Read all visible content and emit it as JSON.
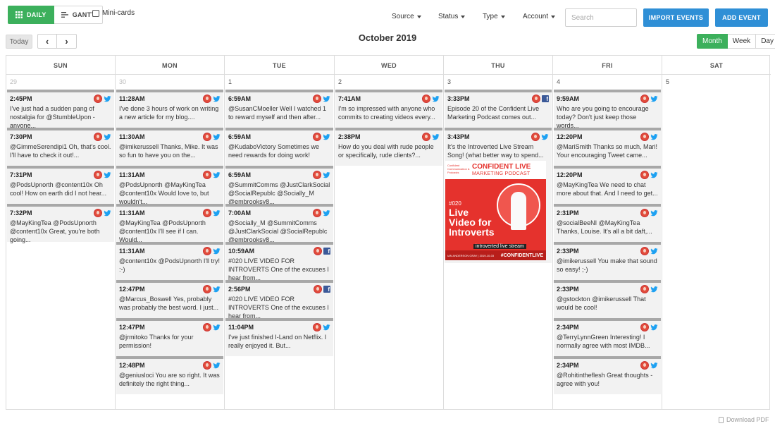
{
  "toolbar": {
    "daily_label": "DAILY",
    "gantt_label": "GANTT",
    "mini_cards_label": "Mini-cards",
    "filters": [
      "Source",
      "Status",
      "Type",
      "Account"
    ],
    "search_placeholder": "Search",
    "import_label": "IMPORT EVENTS",
    "add_label": "ADD EVENT"
  },
  "nav": {
    "today_label": "Today",
    "prev_glyph": "‹",
    "next_glyph": "›",
    "month_title": "October 2019",
    "ranges": [
      "Month",
      "Week",
      "Day"
    ],
    "active_range": "Month"
  },
  "colors": {
    "green": "#3cb05c",
    "blue": "#2f8fd6",
    "twitter": "#1da1f2",
    "facebook": "#3b5998",
    "event_bg": "#f2f2f2",
    "event_border": "#a8a8a8"
  },
  "calendar": {
    "weekdays": [
      "SUN",
      "MON",
      "TUE",
      "WED",
      "THU",
      "FRI",
      "SAT"
    ],
    "days": [
      {
        "day": "29",
        "other_month": true,
        "events": [
          {
            "time": "2:45PM",
            "network": "twitter",
            "text": "I've just had a sudden pang of nostalgia for @StumbleUpon - anyone..."
          },
          {
            "time": "7:30PM",
            "network": "twitter",
            "text": "@GimmeSerendipi1 Oh, that's cool. I'll have to check it out!..."
          },
          {
            "time": "7:31PM",
            "network": "twitter",
            "text": "@PodsUpnorth @content10x Oh cool! How on earth did I not hear..."
          },
          {
            "time": "7:32PM",
            "network": "twitter",
            "text": "@MayKingTea @PodsUpnorth @content10x Great, you're both going..."
          }
        ]
      },
      {
        "day": "30",
        "other_month": true,
        "events": [
          {
            "time": "11:28AM",
            "network": "twitter",
            "text": "I've done 3 hours of work on writing a new article for my blog...."
          },
          {
            "time": "11:30AM",
            "network": "twitter",
            "text": "@imikerussell Thanks, Mike. It was so fun to have you on the..."
          },
          {
            "time": "11:31AM",
            "network": "twitter",
            "text": "@PodsUpnorth @MayKingTea @content10x Would love to, but wouldn't..."
          },
          {
            "time": "11:31AM",
            "network": "twitter",
            "text": "@MayKingTea @PodsUpnorth @content10x I'll see if I can. Would..."
          },
          {
            "time": "11:31AM",
            "network": "twitter",
            "text": "@content10x @PodsUpnorth I'll try! :-)"
          },
          {
            "time": "12:47PM",
            "network": "twitter",
            "text": "@Marcus_Boswell Yes, probably was probably the best word. I just..."
          },
          {
            "time": "12:47PM",
            "network": "twitter",
            "text": "@jrmitoko Thanks for your permission!"
          },
          {
            "time": "12:48PM",
            "network": "twitter",
            "text": "@geniusloci You are so right. It was definitely the right thing..."
          }
        ]
      },
      {
        "day": "1",
        "other_month": false,
        "events": [
          {
            "time": "6:59AM",
            "network": "twitter",
            "text": "@SusanCMoeller Well I watched 1 to reward myself and then after..."
          },
          {
            "time": "6:59AM",
            "network": "twitter",
            "text": "@KudaboVictory Sometimes we need rewards for doing work!"
          },
          {
            "time": "6:59AM",
            "network": "twitter",
            "text": "@SummitComms @JustClarkSocial @SocialRepublc @Socially_M @embrooksy8..."
          },
          {
            "time": "7:00AM",
            "network": "twitter",
            "text": "@Socially_M @SummitComms @JustClarkSocial @SocialRepublc @embrooksy8..."
          },
          {
            "time": "10:59AM",
            "network": "facebook",
            "text": "#020 LIVE VIDEO FOR INTROVERTS One of the excuses I hear from..."
          },
          {
            "time": "2:56PM",
            "network": "facebook",
            "text": "#020 LIVE VIDEO FOR INTROVERTS One of the excuses I hear from..."
          },
          {
            "time": "11:04PM",
            "network": "twitter",
            "text": "I've just finished I-Land on Netflix. I really enjoyed it. But..."
          }
        ]
      },
      {
        "day": "2",
        "other_month": false,
        "events": [
          {
            "time": "7:41AM",
            "network": "twitter",
            "text": "I'm so impressed with anyone who commits to creating videos every..."
          },
          {
            "time": "2:38PM",
            "network": "twitter",
            "text": "How do you deal with rude people or specifically, rude clients?..."
          }
        ]
      },
      {
        "day": "3",
        "other_month": false,
        "events": [
          {
            "time": "3:33PM",
            "network": "facebook",
            "text": "Episode 20 of the Confident Live Marketing Podcast comes out..."
          },
          {
            "time": "3:43PM",
            "network": "twitter",
            "text": "It's the Introverted Live Stream Song! (what better way to spend...",
            "image": {
              "brand_line1": "CONFIDENT LIVE",
              "brand_line2": "MARKETING PODCAST",
              "logo_text": "Confident Communication & Podcasts",
              "episode": "#020",
              "title_line1": "Live",
              "title_line2": "Video for",
              "title_line3": "Introverts",
              "subtitle": "introverted live stream",
              "hashtag": "#CONFIDENTLIVE",
              "footer_small": "IAN ANDERSON GRAY | 2019-10-03"
            }
          }
        ]
      },
      {
        "day": "4",
        "other_month": false,
        "events": [
          {
            "time": "9:59AM",
            "network": "twitter",
            "text": "Who are you going to encourage today? Don't just keep those words..."
          },
          {
            "time": "12:20PM",
            "network": "twitter",
            "text": "@MariSmith Thanks so much, Mari! Your encouraging Tweet came..."
          },
          {
            "time": "12:20PM",
            "network": "twitter",
            "text": "@MayKingTea We need to chat more about that. And I need to get..."
          },
          {
            "time": "2:31PM",
            "network": "twitter",
            "text": "@socialBeeNI @MayKingTea Thanks, Louise. It's all a bit daft,..."
          },
          {
            "time": "2:33PM",
            "network": "twitter",
            "text": "@imikerussell You make that sound so easy! ;-)"
          },
          {
            "time": "2:33PM",
            "network": "twitter",
            "text": "@gstockton @imikerussell That would be cool!"
          },
          {
            "time": "2:34PM",
            "network": "twitter",
            "text": "@TerryLynnGreen Interesting! I normally agree with most IMDB..."
          },
          {
            "time": "2:34PM",
            "network": "twitter",
            "text": "@Rohitintheflesh Great thoughts - agree with you!"
          }
        ]
      },
      {
        "day": "5",
        "other_month": false,
        "events": []
      }
    ]
  },
  "footer": {
    "download_label": "Download PDF"
  }
}
